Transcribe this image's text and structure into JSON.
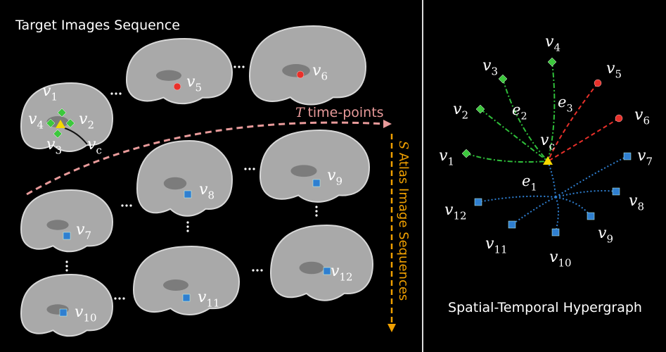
{
  "left_panel": {
    "title": "Target Images Sequence",
    "time_axis": {
      "symbol": "T",
      "text": "time-points"
    },
    "atlas_axis": {
      "symbol": "S",
      "text": "Atlas Image Sequences"
    },
    "labels": [
      {
        "base": "v",
        "sub": "1"
      },
      {
        "base": "v",
        "sub": "2"
      },
      {
        "base": "v",
        "sub": "3"
      },
      {
        "base": "v",
        "sub": "4"
      },
      {
        "base": "v",
        "sub": "c"
      },
      {
        "base": "v",
        "sub": "5"
      },
      {
        "base": "v",
        "sub": "6"
      },
      {
        "base": "v",
        "sub": "7"
      },
      {
        "base": "v",
        "sub": "8"
      },
      {
        "base": "v",
        "sub": "9"
      },
      {
        "base": "v",
        "sub": "10"
      },
      {
        "base": "v",
        "sub": "11"
      },
      {
        "base": "v",
        "sub": "12"
      }
    ]
  },
  "right_panel": {
    "title": "Spatial-Temporal Hypergraph",
    "nodes": [
      {
        "base": "v",
        "sub": "1"
      },
      {
        "base": "v",
        "sub": "2"
      },
      {
        "base": "v",
        "sub": "3"
      },
      {
        "base": "v",
        "sub": "4"
      },
      {
        "base": "v",
        "sub": "c"
      },
      {
        "base": "v",
        "sub": "5"
      },
      {
        "base": "v",
        "sub": "6"
      },
      {
        "base": "v",
        "sub": "7"
      },
      {
        "base": "v",
        "sub": "8"
      },
      {
        "base": "v",
        "sub": "9"
      },
      {
        "base": "v",
        "sub": "10"
      },
      {
        "base": "v",
        "sub": "11"
      },
      {
        "base": "v",
        "sub": "12"
      }
    ],
    "hyperedges": [
      {
        "base": "e",
        "sub": "1"
      },
      {
        "base": "e",
        "sub": "2"
      },
      {
        "base": "e",
        "sub": "3"
      }
    ]
  }
}
